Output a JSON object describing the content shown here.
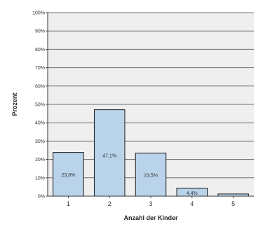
{
  "chart_data": {
    "type": "bar",
    "categories": [
      "1",
      "2",
      "3",
      "4",
      "5"
    ],
    "values": [
      23.8,
      47.1,
      23.5,
      4.4,
      1.2
    ],
    "data_labels": [
      "23,8%",
      "47,1%",
      "23,5%",
      "4,4%",
      ""
    ],
    "ylim": [
      0,
      100
    ],
    "yticks": [
      "0%",
      "10%",
      "20%",
      "30%",
      "40%",
      "50%",
      "60%",
      "70%",
      "80%",
      "90%",
      "100%"
    ],
    "xlabel": "Anzahl der Kinder",
    "ylabel": "Prozent",
    "grid": true,
    "colors": {
      "bar_fill": "#b9d3ea",
      "bar_stroke": "#1a1a1a",
      "plot_bg": "#efefef",
      "gridline": "#6e6e6e"
    }
  }
}
